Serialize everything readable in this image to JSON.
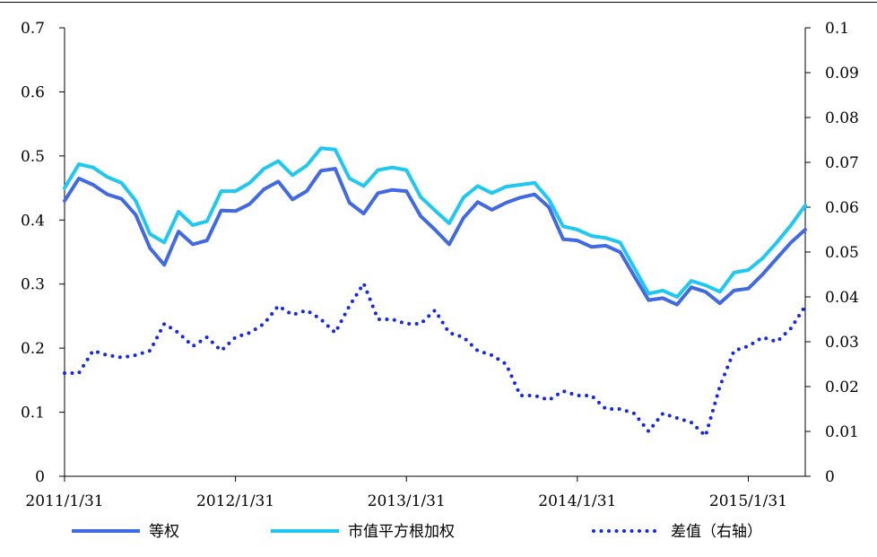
{
  "chart_data": {
    "type": "line",
    "title": "",
    "xlabel": "",
    "ylabel": "",
    "x_tick_labels": [
      "2011/1/31",
      "2012/1/31",
      "2013/1/31",
      "2014/1/31",
      "2015/1/31"
    ],
    "x_tick_index": [
      0,
      12,
      24,
      36,
      48
    ],
    "y_left_ticks": [
      "0",
      "0.1",
      "0.2",
      "0.3",
      "0.4",
      "0.5",
      "0.6",
      "0.7"
    ],
    "y_right_ticks": [
      "0",
      "0.01",
      "0.02",
      "0.03",
      "0.04",
      "0.05",
      "0.06",
      "0.07",
      "0.08",
      "0.09",
      "0.1"
    ],
    "ylim_left": [
      0,
      0.7
    ],
    "ylim_right": [
      0,
      0.1
    ],
    "grid": false,
    "legend_position": "bottom",
    "series": [
      {
        "name": "等权",
        "axis": "left",
        "color": "#4169E1",
        "style": "solid",
        "values": [
          0.43,
          0.465,
          0.455,
          0.44,
          0.433,
          0.408,
          0.356,
          0.33,
          0.382,
          0.362,
          0.368,
          0.415,
          0.414,
          0.425,
          0.448,
          0.46,
          0.432,
          0.445,
          0.477,
          0.48,
          0.427,
          0.41,
          0.442,
          0.447,
          0.445,
          0.406,
          0.385,
          0.362,
          0.403,
          0.428,
          0.416,
          0.427,
          0.435,
          0.44,
          0.42,
          0.37,
          0.368,
          0.358,
          0.36,
          0.35,
          0.312,
          0.275,
          0.278,
          0.268,
          0.295,
          0.288,
          0.27,
          0.29,
          0.293,
          0.315,
          0.34,
          0.365,
          0.385
        ]
      },
      {
        "name": "市值平方根加权",
        "axis": "left",
        "color": "#1EC8F0",
        "style": "solid",
        "values": [
          0.45,
          0.487,
          0.482,
          0.467,
          0.458,
          0.43,
          0.378,
          0.365,
          0.413,
          0.392,
          0.398,
          0.445,
          0.445,
          0.458,
          0.48,
          0.492,
          0.47,
          0.485,
          0.512,
          0.51,
          0.465,
          0.453,
          0.478,
          0.482,
          0.478,
          0.436,
          0.415,
          0.395,
          0.435,
          0.453,
          0.442,
          0.452,
          0.455,
          0.458,
          0.432,
          0.39,
          0.385,
          0.375,
          0.372,
          0.365,
          0.325,
          0.285,
          0.29,
          0.28,
          0.305,
          0.298,
          0.288,
          0.318,
          0.322,
          0.34,
          0.365,
          0.392,
          0.423
        ]
      },
      {
        "name": "差值（右轴）",
        "axis": "right",
        "color": "#1428E6",
        "style": "dotted",
        "values": [
          0.023,
          0.023,
          0.028,
          0.027,
          0.0265,
          0.027,
          0.028,
          0.034,
          0.032,
          0.029,
          0.031,
          0.028,
          0.031,
          0.032,
          0.034,
          0.038,
          0.036,
          0.037,
          0.035,
          0.032,
          0.038,
          0.043,
          0.035,
          0.035,
          0.034,
          0.034,
          0.037,
          0.032,
          0.031,
          0.028,
          0.027,
          0.025,
          0.018,
          0.018,
          0.017,
          0.019,
          0.018,
          0.018,
          0.015,
          0.015,
          0.014,
          0.01,
          0.014,
          0.013,
          0.012,
          0.009,
          0.02,
          0.028,
          0.029,
          0.031,
          0.03,
          0.033,
          0.038
        ]
      }
    ]
  }
}
